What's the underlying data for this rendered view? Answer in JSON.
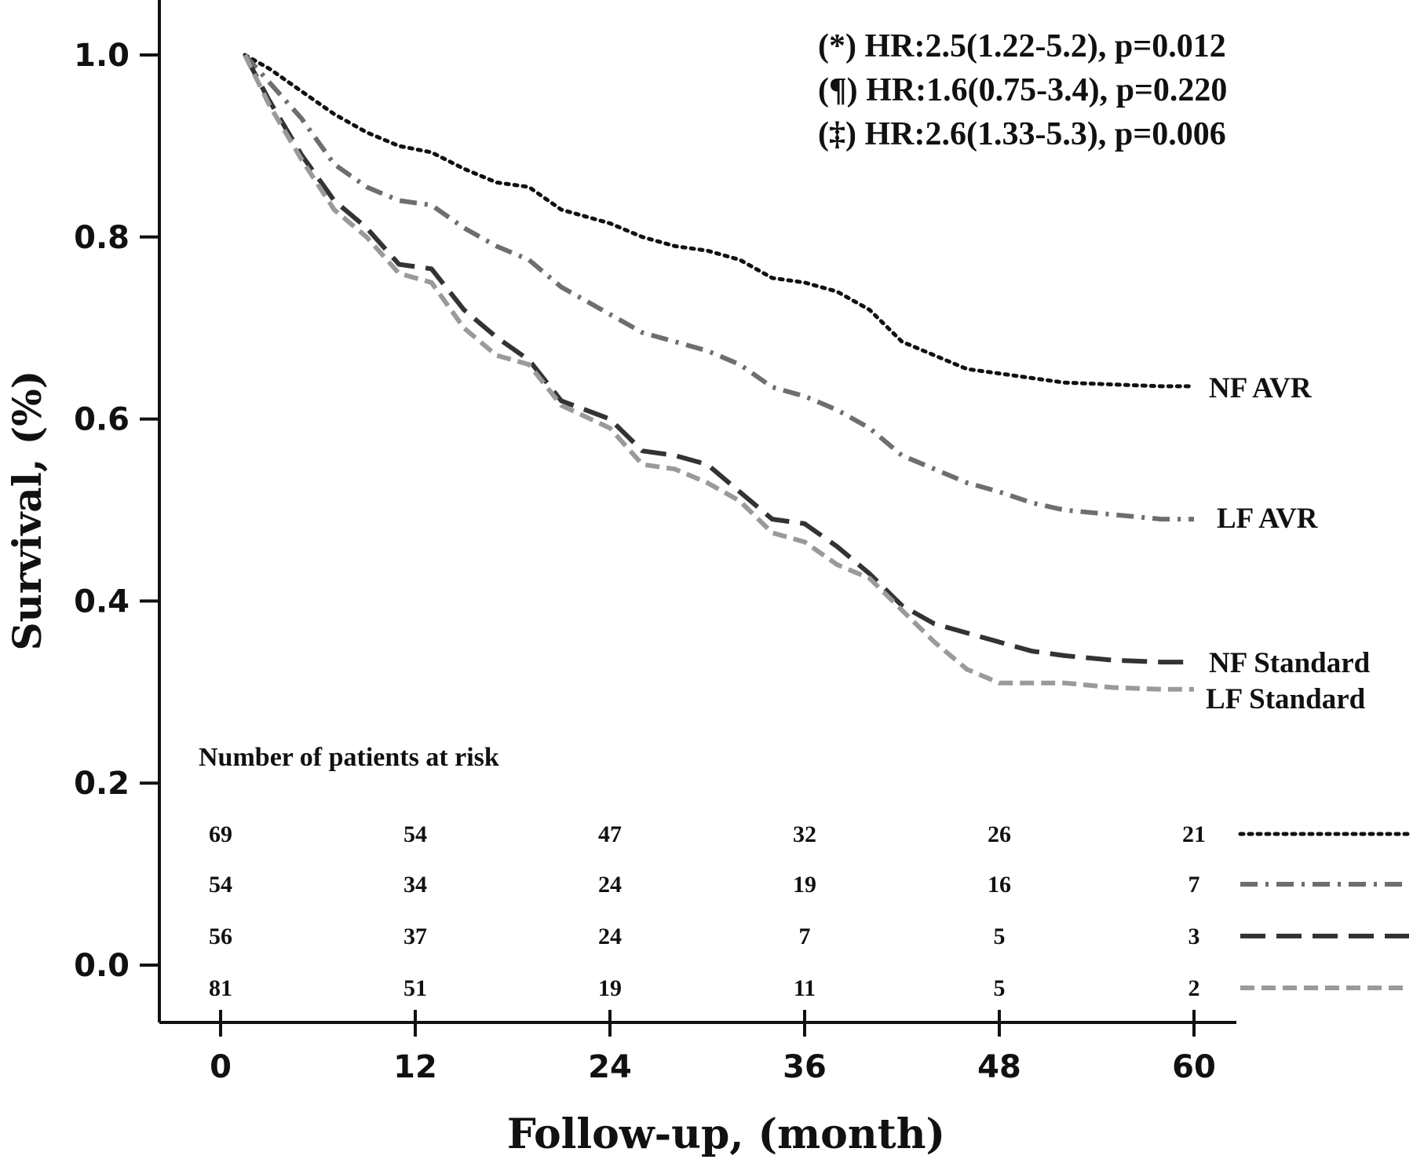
{
  "chart_data": {
    "type": "line",
    "xlabel": "Follow-up,  (month)",
    "ylabel": "Survival, (%)",
    "xlim": [
      0,
      60
    ],
    "ylim": [
      0.0,
      1.0
    ],
    "x_ticks": [
      "0",
      "12",
      "24",
      "36",
      "48",
      "60"
    ],
    "y_ticks": [
      "0.0",
      "0.2",
      "0.4",
      "0.6",
      "0.8",
      "1.0"
    ],
    "grid": false,
    "annotations": [
      "(*) HR:2.5(1.22-5.2), p=0.012",
      "(¶) HR:1.6(0.75-3.4), p=0.220",
      "(‡) HR:2.6(1.33-5.3), p=0.006"
    ],
    "series": [
      {
        "name": "NF AVR",
        "style": "dotted",
        "color": "#111111",
        "x": [
          1.5,
          3,
          5,
          7,
          9,
          11,
          13,
          15,
          17,
          19,
          21,
          24,
          26,
          28,
          30,
          32,
          34,
          36,
          38,
          40,
          42,
          44,
          46,
          48,
          50,
          52,
          55,
          58,
          60
        ],
        "y": [
          1.0,
          0.985,
          0.96,
          0.935,
          0.915,
          0.9,
          0.893,
          0.875,
          0.86,
          0.855,
          0.83,
          0.815,
          0.8,
          0.79,
          0.785,
          0.775,
          0.755,
          0.75,
          0.74,
          0.72,
          0.685,
          0.67,
          0.655,
          0.65,
          0.645,
          0.64,
          0.638,
          0.636,
          0.636
        ]
      },
      {
        "name": "LF AVR",
        "style": "dashdot",
        "color": "#6e6e6e",
        "x": [
          1.5,
          3,
          5,
          7,
          9,
          11,
          13,
          15,
          17,
          19,
          21,
          24,
          26,
          28,
          30,
          32,
          34,
          36,
          38,
          40,
          42,
          44,
          46,
          48,
          50,
          52,
          55,
          58,
          60
        ],
        "y": [
          1.0,
          0.97,
          0.93,
          0.88,
          0.855,
          0.84,
          0.835,
          0.81,
          0.79,
          0.775,
          0.745,
          0.715,
          0.695,
          0.685,
          0.675,
          0.66,
          0.635,
          0.625,
          0.61,
          0.59,
          0.56,
          0.545,
          0.53,
          0.52,
          0.508,
          0.5,
          0.495,
          0.49,
          0.49
        ]
      },
      {
        "name": "NF Standard",
        "style": "longdash",
        "color": "#333333",
        "x": [
          1.5,
          3,
          5,
          7,
          9,
          11,
          13,
          15,
          17,
          19,
          21,
          24,
          26,
          28,
          30,
          32,
          34,
          36,
          38,
          40,
          42,
          44,
          46,
          48,
          50,
          52,
          55,
          58,
          60
        ],
        "y": [
          1.0,
          0.95,
          0.89,
          0.84,
          0.81,
          0.77,
          0.765,
          0.72,
          0.69,
          0.665,
          0.62,
          0.6,
          0.565,
          0.56,
          0.55,
          0.52,
          0.49,
          0.485,
          0.46,
          0.43,
          0.395,
          0.375,
          0.365,
          0.355,
          0.345,
          0.34,
          0.335,
          0.333,
          0.333
        ]
      },
      {
        "name": "LF Standard",
        "style": "dashed",
        "color": "#9a9a9a",
        "x": [
          1.5,
          3,
          5,
          7,
          9,
          11,
          13,
          15,
          17,
          19,
          21,
          24,
          26,
          28,
          30,
          32,
          34,
          36,
          38,
          40,
          42,
          44,
          46,
          48,
          50,
          52,
          55,
          58,
          60
        ],
        "y": [
          1.0,
          0.945,
          0.885,
          0.83,
          0.8,
          0.76,
          0.75,
          0.7,
          0.67,
          0.66,
          0.615,
          0.59,
          0.55,
          0.545,
          0.53,
          0.51,
          0.475,
          0.465,
          0.44,
          0.425,
          0.39,
          0.355,
          0.325,
          0.31,
          0.31,
          0.31,
          0.305,
          0.303,
          0.303
        ]
      }
    ],
    "risk_table": {
      "title": "Number of patients  at risk",
      "timepoints": [
        0,
        12,
        24,
        36,
        48,
        60
      ],
      "rows": [
        {
          "style": "dotted",
          "color": "#111111",
          "values": [
            "69",
            "54",
            "47",
            "32",
            "26",
            "21"
          ]
        },
        {
          "style": "dashdot",
          "color": "#6e6e6e",
          "values": [
            "54",
            "34",
            "24",
            "19",
            "16",
            "7"
          ]
        },
        {
          "style": "longdash",
          "color": "#333333",
          "values": [
            "56",
            "37",
            "24",
            "7",
            "5",
            "3"
          ]
        },
        {
          "style": "dashed",
          "color": "#9a9a9a",
          "values": [
            "81",
            "51",
            "19",
            "11",
            "5",
            "2"
          ]
        }
      ]
    }
  }
}
